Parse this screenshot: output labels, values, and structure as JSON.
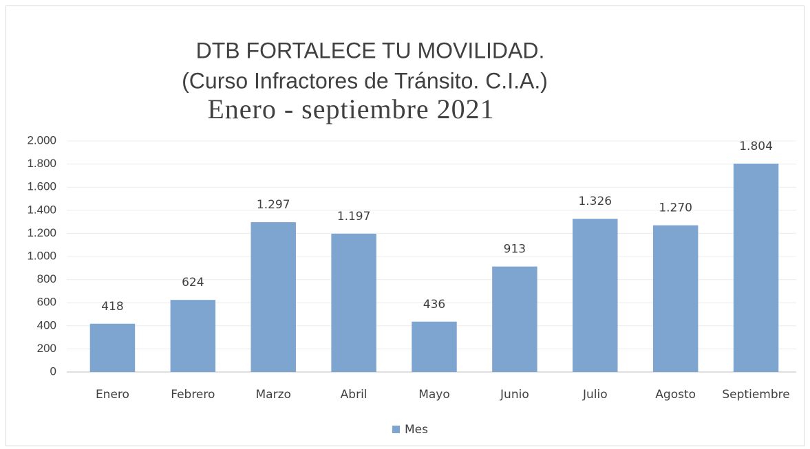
{
  "chart_data": {
    "type": "bar",
    "title": [
      "DTB FORTALECE TU MOVILIDAD.",
      "(Curso Infractores de Tránsito. C.I.A.)"
    ],
    "subtitle": "Enero - septiembre 2021",
    "categories": [
      "Enero",
      "Febrero",
      "Marzo",
      "Abril",
      "Mayo",
      "Junio",
      "Julio",
      "Agosto",
      "Septiembre"
    ],
    "series": [
      {
        "name": "Mes",
        "color": "#7ea4d0",
        "values": [
          418,
          624,
          1297,
          1197,
          436,
          913,
          1326,
          1270,
          1804
        ],
        "value_labels": [
          "418",
          "624",
          "1.297",
          "1.197",
          "436",
          "913",
          "1.326",
          "1.270",
          "1.804"
        ]
      }
    ],
    "ylim": [
      0,
      2000
    ],
    "yticks": [
      0,
      200,
      400,
      600,
      800,
      {
        "value": 1000,
        "label": "1.000"
      },
      {
        "value": 1200,
        "label": "1.200"
      },
      {
        "value": 1400,
        "label": "1.400"
      },
      {
        "value": 1600,
        "label": "1.600"
      },
      {
        "value": 1800,
        "label": "1.800"
      },
      {
        "value": 2000,
        "label": "2.000"
      }
    ],
    "grid": true,
    "legend": "bottom"
  }
}
